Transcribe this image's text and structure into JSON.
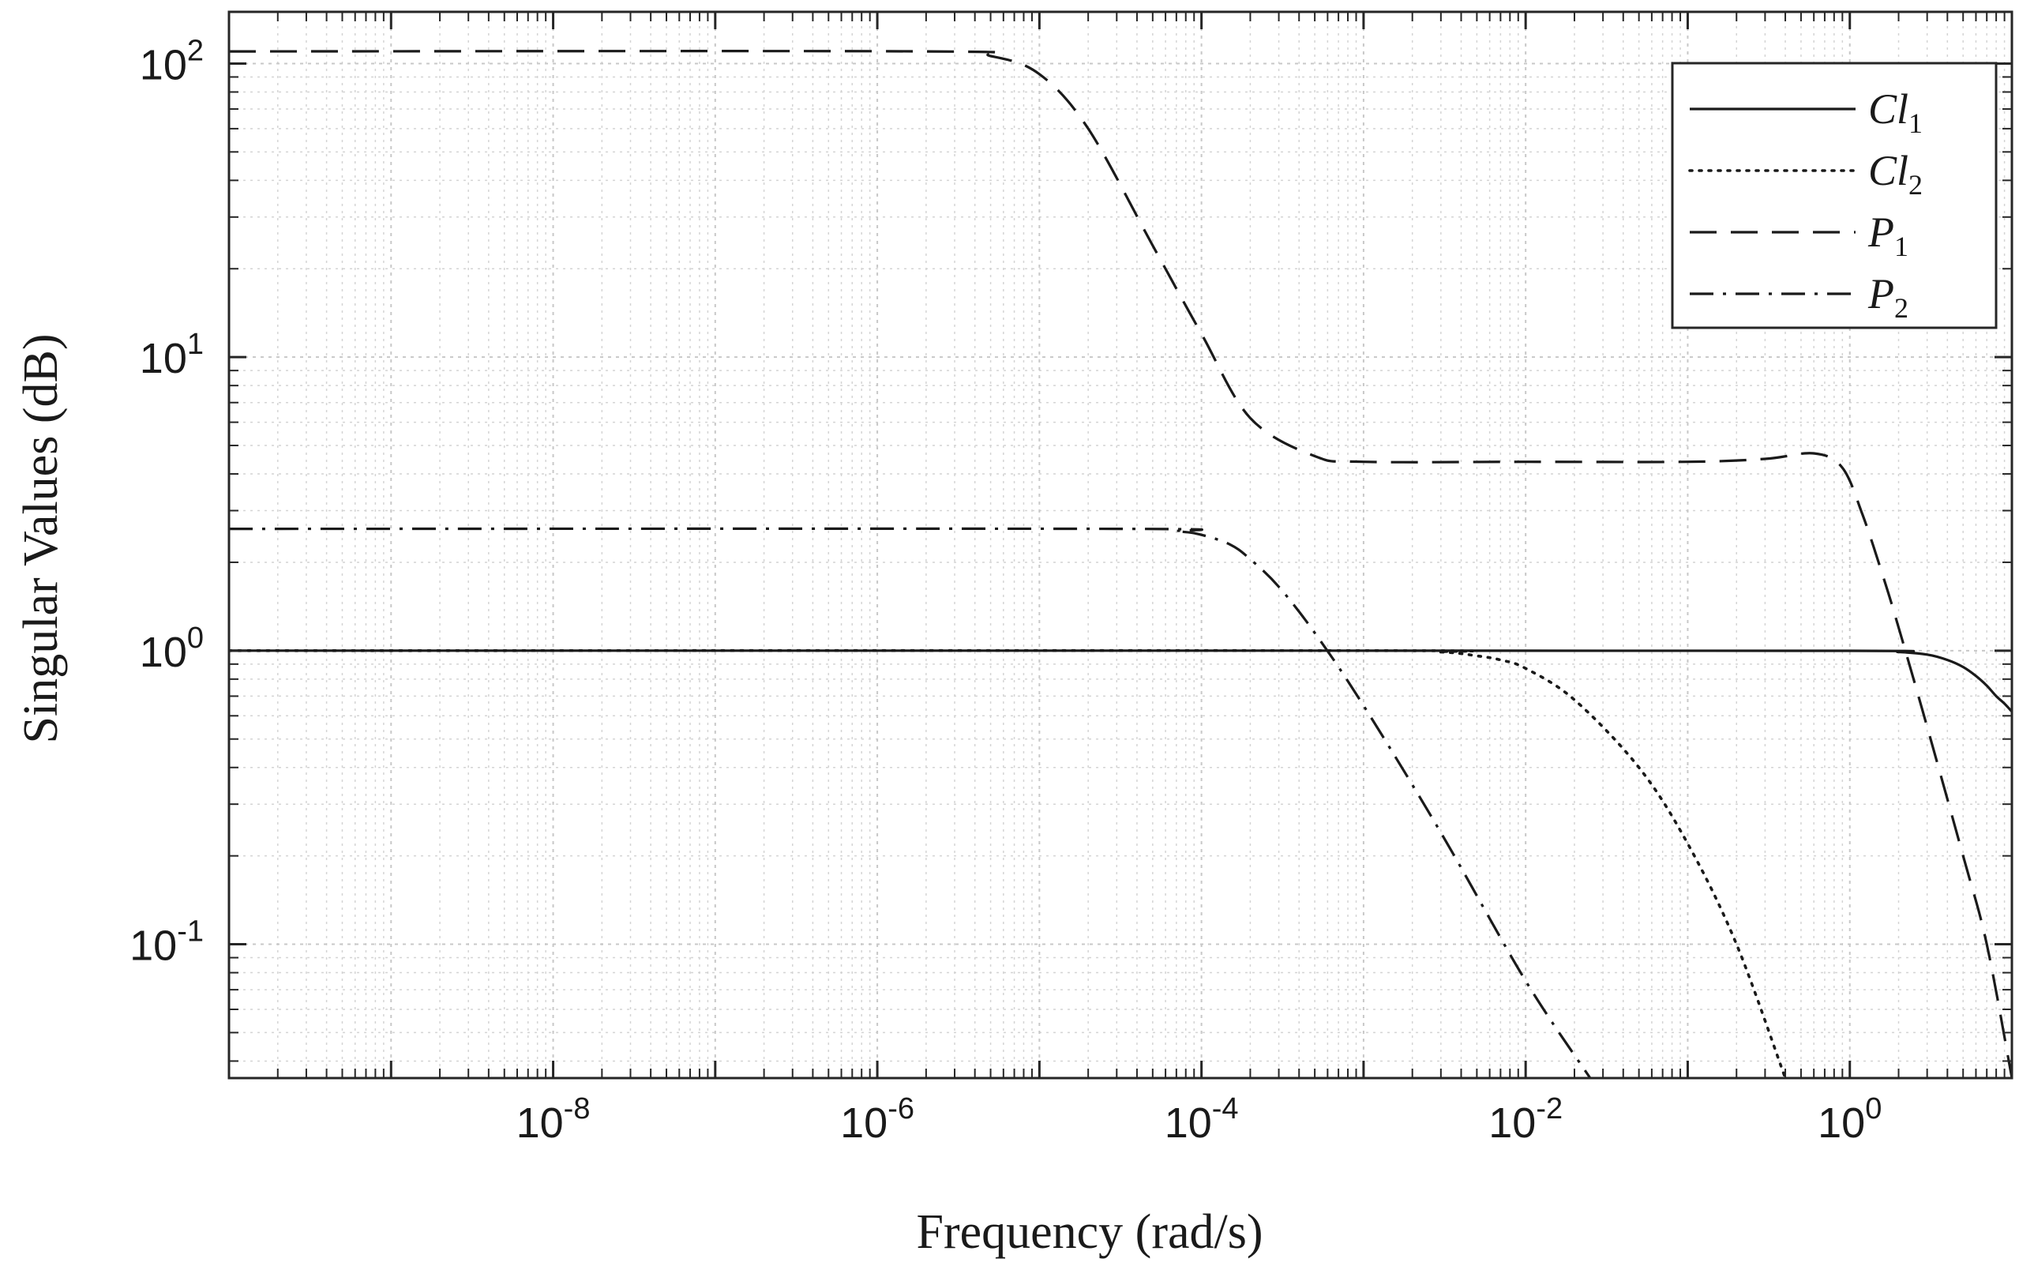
{
  "chart_data": {
    "type": "line",
    "xlabel": "Frequency (rad/s)",
    "ylabel": "Singular Values (dB)",
    "xscale": "log",
    "yscale": "log",
    "xlim": [
      1e-10,
      10
    ],
    "ylim": [
      0.035,
      150
    ],
    "grid": true,
    "minor_grid": true,
    "x_ticks": [
      {
        "value": 1e-08,
        "base": "10",
        "exp": "-8"
      },
      {
        "value": 1e-06,
        "base": "10",
        "exp": "-6"
      },
      {
        "value": 0.0001,
        "base": "10",
        "exp": "-4"
      },
      {
        "value": 0.01,
        "base": "10",
        "exp": "-2"
      },
      {
        "value": 1,
        "base": "10",
        "exp": "0"
      }
    ],
    "y_ticks": [
      {
        "value": 0.1,
        "base": "10",
        "exp": "-1"
      },
      {
        "value": 1,
        "base": "10",
        "exp": "0"
      },
      {
        "value": 10,
        "base": "10",
        "exp": "1"
      },
      {
        "value": 100,
        "base": "10",
        "exp": "2"
      }
    ],
    "legend_position": "top-right",
    "series": [
      {
        "name": "Cl",
        "subscript": "1",
        "style": "solid",
        "x": [
          1e-10,
          0.0001,
          1,
          2,
          3,
          4,
          5,
          6,
          7,
          8,
          9,
          10
        ],
        "y": [
          1,
          1,
          0.999,
          0.99,
          0.97,
          0.93,
          0.88,
          0.82,
          0.76,
          0.7,
          0.66,
          0.62
        ]
      },
      {
        "name": "Cl",
        "subscript": "2",
        "style": "dotted",
        "x": [
          1e-10,
          0.001,
          0.003,
          0.005,
          0.007,
          0.01,
          0.02,
          0.05,
          0.1,
          0.2,
          0.4
        ],
        "y": [
          1,
          1,
          0.99,
          0.96,
          0.93,
          0.87,
          0.68,
          0.4,
          0.22,
          0.1,
          0.035
        ]
      },
      {
        "name": "P",
        "subscript": "1",
        "style": "dashed",
        "x": [
          1e-10,
          2e-06,
          5e-06,
          1e-05,
          2e-05,
          5e-05,
          0.0001,
          0.0002,
          0.0005,
          0.001,
          0.01,
          0.1,
          0.3,
          0.6,
          0.9,
          1.2,
          1.6,
          2,
          3,
          5,
          7,
          10
        ],
        "y": [
          110,
          110,
          106,
          92,
          60,
          24,
          12,
          6.2,
          4.6,
          4.4,
          4.4,
          4.4,
          4.5,
          4.7,
          4.2,
          2.9,
          1.8,
          1.2,
          0.55,
          0.2,
          0.1,
          0.035
        ]
      },
      {
        "name": "P",
        "subscript": "2",
        "style": "dashdot",
        "x": [
          1e-10,
          3e-05,
          7e-05,
          0.0001,
          0.00015,
          0.0002,
          0.0003,
          0.0005,
          0.001,
          0.003,
          0.01,
          0.025
        ],
        "y": [
          2.6,
          2.6,
          2.55,
          2.48,
          2.3,
          2.05,
          1.65,
          1.15,
          0.65,
          0.24,
          0.075,
          0.035
        ]
      }
    ]
  }
}
